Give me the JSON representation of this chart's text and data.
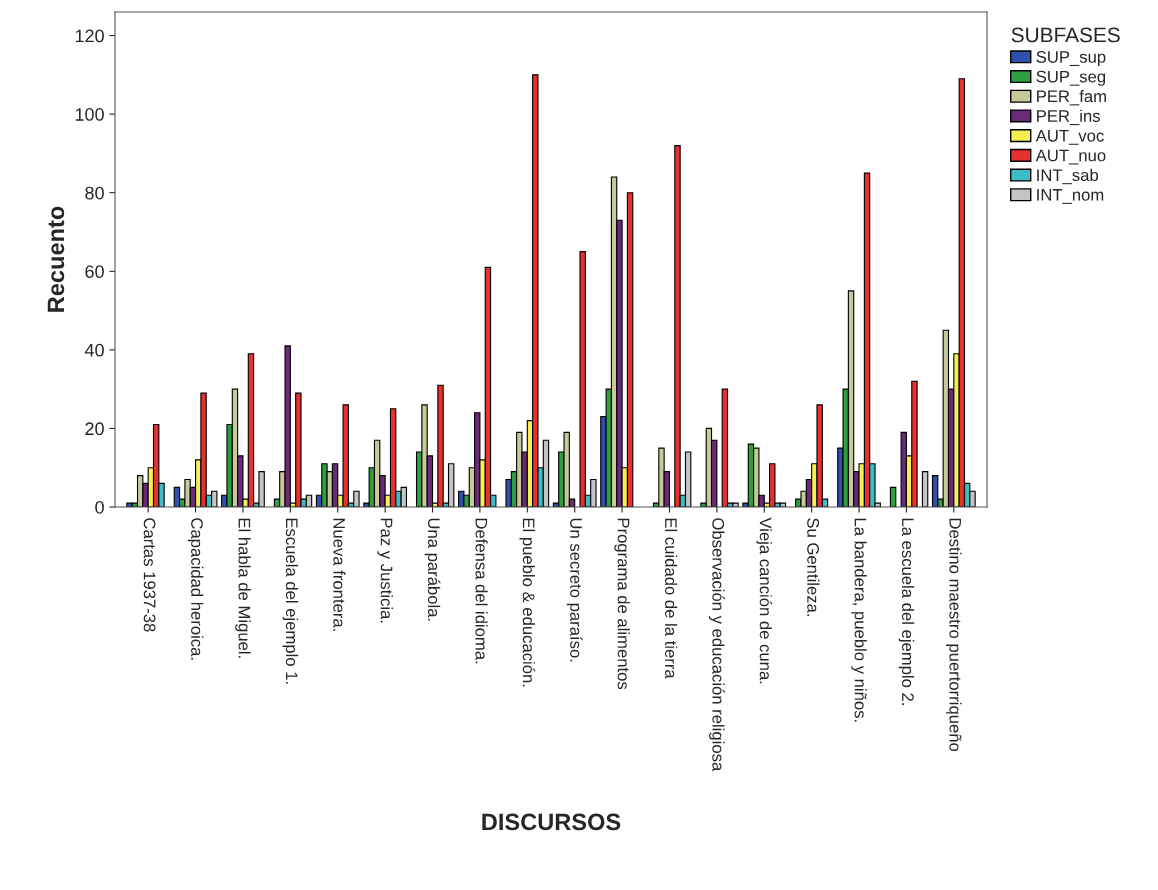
{
  "chart_data": {
    "type": "bar",
    "xlabel": "DISCURSOS",
    "ylabel": "Recuento",
    "legend_title": "SUBFASES",
    "legend": "top right",
    "grid": false,
    "categories": [
      "Cartas 1937-38",
      "Capacidad heroica.",
      "El habla de Miguel.",
      "Escuela del ejemplo 1.",
      "Nueva frontera.",
      "Paz y Justicia.",
      "Una parábola.",
      "Defensa del idioma.",
      "El pueblo & educación.",
      "Un secreto paraíso.",
      "Programa de alimentos",
      "El cuidado de la tierra",
      "Observación y educación religiosa",
      "Vieja canción de cuna.",
      "Su Gentileza.",
      "La bandera, pueblo y niños.",
      "La escuela del ejemplo 2.",
      "Destino maestro puertorriqueño"
    ],
    "ylim": [
      0,
      126
    ],
    "yticks": [
      0,
      20,
      40,
      60,
      80,
      100,
      120
    ],
    "series": [
      {
        "name": "SUP_sup",
        "color": "#3050b0",
        "values": [
          1,
          5,
          3,
          null,
          3,
          1,
          null,
          4,
          7,
          1,
          23,
          null,
          null,
          1,
          null,
          15,
          null,
          8
        ]
      },
      {
        "name": "SUP_seg",
        "color": "#2e9e3e",
        "values": [
          1,
          2,
          21,
          2,
          11,
          10,
          14,
          3,
          9,
          14,
          30,
          1,
          1,
          16,
          2,
          30,
          5,
          2
        ]
      },
      {
        "name": "PER_fam",
        "color": "#c8c898",
        "values": [
          8,
          7,
          30,
          9,
          9,
          17,
          26,
          10,
          19,
          19,
          84,
          15,
          20,
          15,
          4,
          55,
          null,
          45
        ]
      },
      {
        "name": "PER_ins",
        "color": "#6a2a7a",
        "values": [
          6,
          5,
          13,
          41,
          11,
          8,
          13,
          24,
          14,
          2,
          73,
          9,
          17,
          3,
          7,
          9,
          19,
          30
        ]
      },
      {
        "name": "AUT_voc",
        "color": "#f5f050",
        "values": [
          10,
          12,
          2,
          1,
          3,
          3,
          1,
          12,
          22,
          null,
          10,
          null,
          null,
          1,
          11,
          11,
          13,
          39
        ]
      },
      {
        "name": "AUT_nuo",
        "color": "#e8302f",
        "values": [
          21,
          29,
          39,
          29,
          26,
          25,
          31,
          61,
          110,
          65,
          80,
          92,
          30,
          11,
          26,
          85,
          32,
          109
        ]
      },
      {
        "name": "INT_sab",
        "color": "#3cbcc4",
        "values": [
          6,
          3,
          1,
          2,
          1,
          4,
          1,
          3,
          10,
          3,
          null,
          3,
          1,
          1,
          2,
          11,
          null,
          6
        ]
      },
      {
        "name": "INT_nom",
        "color": "#c4c4c4",
        "values": [
          null,
          4,
          9,
          3,
          4,
          5,
          11,
          null,
          17,
          7,
          null,
          14,
          1,
          1,
          null,
          1,
          9,
          4
        ]
      }
    ]
  }
}
